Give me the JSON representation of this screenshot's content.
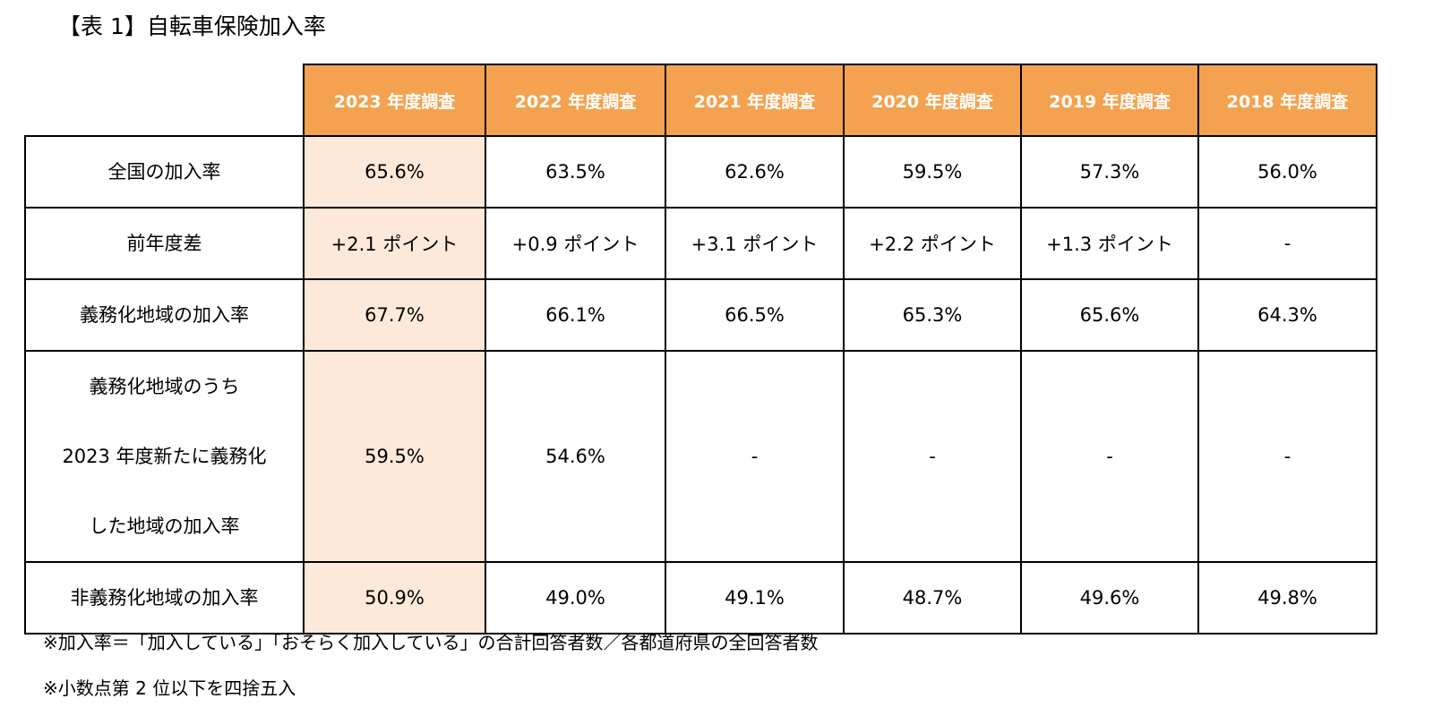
{
  "title": "【表 1】自転車保険加入率",
  "table": {
    "columns": [
      "2023 年度調査",
      "2022 年度調査",
      "2021 年度調査",
      "2020 年度調査",
      "2019 年度調査",
      "2018 年度調査"
    ],
    "rows": [
      {
        "label_lines": [
          "全国の加入率"
        ],
        "values": [
          "65.6%",
          "63.5%",
          "62.6%",
          "59.5%",
          "57.3%",
          "56.0%"
        ]
      },
      {
        "label_lines": [
          "前年度差"
        ],
        "values": [
          "+2.1 ポイント",
          "+0.9 ポイント",
          "+3.1 ポイント",
          "+2.2 ポイント",
          "+1.3 ポイント",
          "-"
        ]
      },
      {
        "label_lines": [
          "義務化地域の加入率"
        ],
        "values": [
          "67.7%",
          "66.1%",
          "66.5%",
          "65.3%",
          "65.6%",
          "64.3%"
        ]
      },
      {
        "label_lines": [
          "義務化地域のうち",
          "2023 年度新たに義務化",
          "した地域の加入率"
        ],
        "values": [
          "59.5%",
          "54.6%",
          "-",
          "-",
          "-",
          "-"
        ]
      },
      {
        "label_lines": [
          "非義務化地域の加入率"
        ],
        "values": [
          "50.9%",
          "49.0%",
          "49.1%",
          "48.7%",
          "49.6%",
          "49.8%"
        ]
      }
    ]
  },
  "notes": [
    "※加入率＝「加入している」「おそらく加入している」の合計回答者数／各都道府県の全回答者数",
    "※小数点第 2 位以下を四捨五入"
  ],
  "colors": {
    "header_bg": "#f4a24f",
    "header_text": "#ffffff",
    "highlight_bg": "#fde9d9"
  }
}
